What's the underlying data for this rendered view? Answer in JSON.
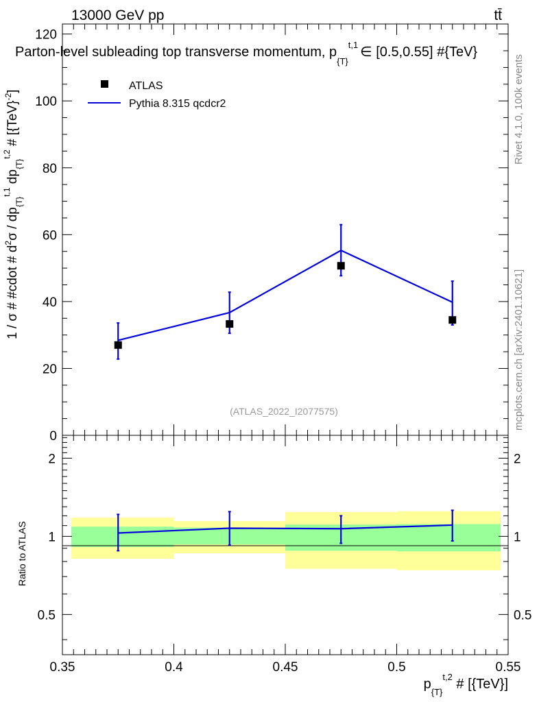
{
  "header": {
    "energy_label": "13000 GeV pp",
    "process_label": "tt̄"
  },
  "side_text": {
    "rivet": "Rivet 4.1.0,  100k events",
    "mcplots": "mcplots.cern.ch [arXiv:2401.10621]"
  },
  "colors": {
    "atlas": "#000000",
    "pythia": "#0000dd",
    "band_inner": "#99ff99",
    "band_outer": "#ffff99"
  },
  "chart_data": [
    {
      "type": "scatter",
      "title": "Parton-level subleading top transverse momentum, p_{T}^{t,1} ∈ [0.5,0.55] #{TeV}",
      "title_main": "Parton-level subleading top transverse momentum, p",
      "title_sub": "{T}",
      "title_sup": "t,1",
      "title_tail": "∈ [0.5,0.55] #{TeV}",
      "ylabel": "1 / σ # #cdot # d²σ / dp_{T}^{t,1} dp_{T}^{t,2} # [{TeV}^{-2}]",
      "ylabel_main": "1 / σ # #cdot # d",
      "ylabel_sup1": "2",
      "ylabel_mid": "σ / dp",
      "ylabel_sub1": "{T}",
      "ylabel_sup2": "t,1",
      "ylabel_mid2": " dp",
      "ylabel_sub2": "{T}",
      "ylabel_sup3": "t,2",
      "ylabel_tail": " # [{TeV}",
      "ylabel_sup4": "-2",
      "ylabel_end": "]",
      "watermark": "(ATLAS_2022_I2077575)",
      "xlim": [
        0.35,
        0.55
      ],
      "ylim": [
        0,
        123
      ],
      "yticks": [
        0,
        20,
        40,
        60,
        80,
        100,
        120
      ],
      "ytick_labels": [
        "0",
        "20",
        "40",
        "60",
        "80",
        "100",
        "120"
      ],
      "legend": [
        {
          "name": "ATLAS",
          "style": "marker"
        },
        {
          "name": "Pythia 8.315 qcdcr2",
          "style": "line"
        }
      ],
      "series": [
        {
          "name": "ATLAS",
          "x": [
            0.375,
            0.425,
            0.475,
            0.525
          ],
          "y": [
            27.0,
            33.3,
            50.7,
            34.5
          ],
          "yerr_low": [
            0,
            0,
            0,
            0
          ],
          "yerr_high": [
            0,
            0,
            0,
            0
          ]
        },
        {
          "name": "Pythia 8.315 qcdcr2",
          "bin_edges": [
            0.35,
            0.4,
            0.45,
            0.5,
            0.55
          ],
          "x": [
            0.375,
            0.425,
            0.475,
            0.525
          ],
          "y": [
            28.4,
            36.7,
            55.3,
            39.8
          ],
          "yerr_low": [
            22.8,
            30.5,
            47.7,
            33.0
          ],
          "yerr_high": [
            33.6,
            42.8,
            63.0,
            46.1
          ]
        }
      ]
    },
    {
      "type": "scatter",
      "ylabel": "Ratio to ATLAS",
      "xlabel": "p_{T}^{t,2} # [{TeV}]",
      "xlabel_main": "p",
      "xlabel_sub": "{T}",
      "xlabel_sup": "t,2",
      "xlabel_tail": " # [{TeV}]",
      "xlim": [
        0.35,
        0.55
      ],
      "ylim": [
        0.35,
        2.45
      ],
      "ylog": true,
      "yticks": [
        0.5,
        1,
        2
      ],
      "ytick_labels": [
        "0.5",
        "1",
        "2"
      ],
      "xticks": [
        0.35,
        0.4,
        0.45,
        0.5,
        0.55
      ],
      "xtick_labels": [
        "0.35",
        "0.4",
        "0.45",
        "0.5",
        "0.55"
      ],
      "bands": {
        "bin_edges": [
          0.35,
          0.4,
          0.45,
          0.5,
          0.55
        ],
        "inner_low": [
          0.91,
          0.93,
          0.88,
          0.875,
          0.875
        ],
        "inner_high": [
          1.09,
          1.08,
          1.11,
          1.115,
          1.115
        ],
        "outer_low": [
          0.82,
          0.86,
          0.75,
          0.74,
          0.74
        ],
        "outer_high": [
          1.18,
          1.145,
          1.24,
          1.25,
          1.25
        ]
      },
      "series": [
        {
          "name": "Pythia 8.315 qcdcr2",
          "x": [
            0.375,
            0.425,
            0.475,
            0.525
          ],
          "y": [
            1.03,
            1.075,
            1.07,
            1.105
          ],
          "yerr_low": [
            0.88,
            0.925,
            0.94,
            0.96
          ],
          "yerr_high": [
            1.215,
            1.245,
            1.2,
            1.26
          ]
        }
      ]
    }
  ]
}
